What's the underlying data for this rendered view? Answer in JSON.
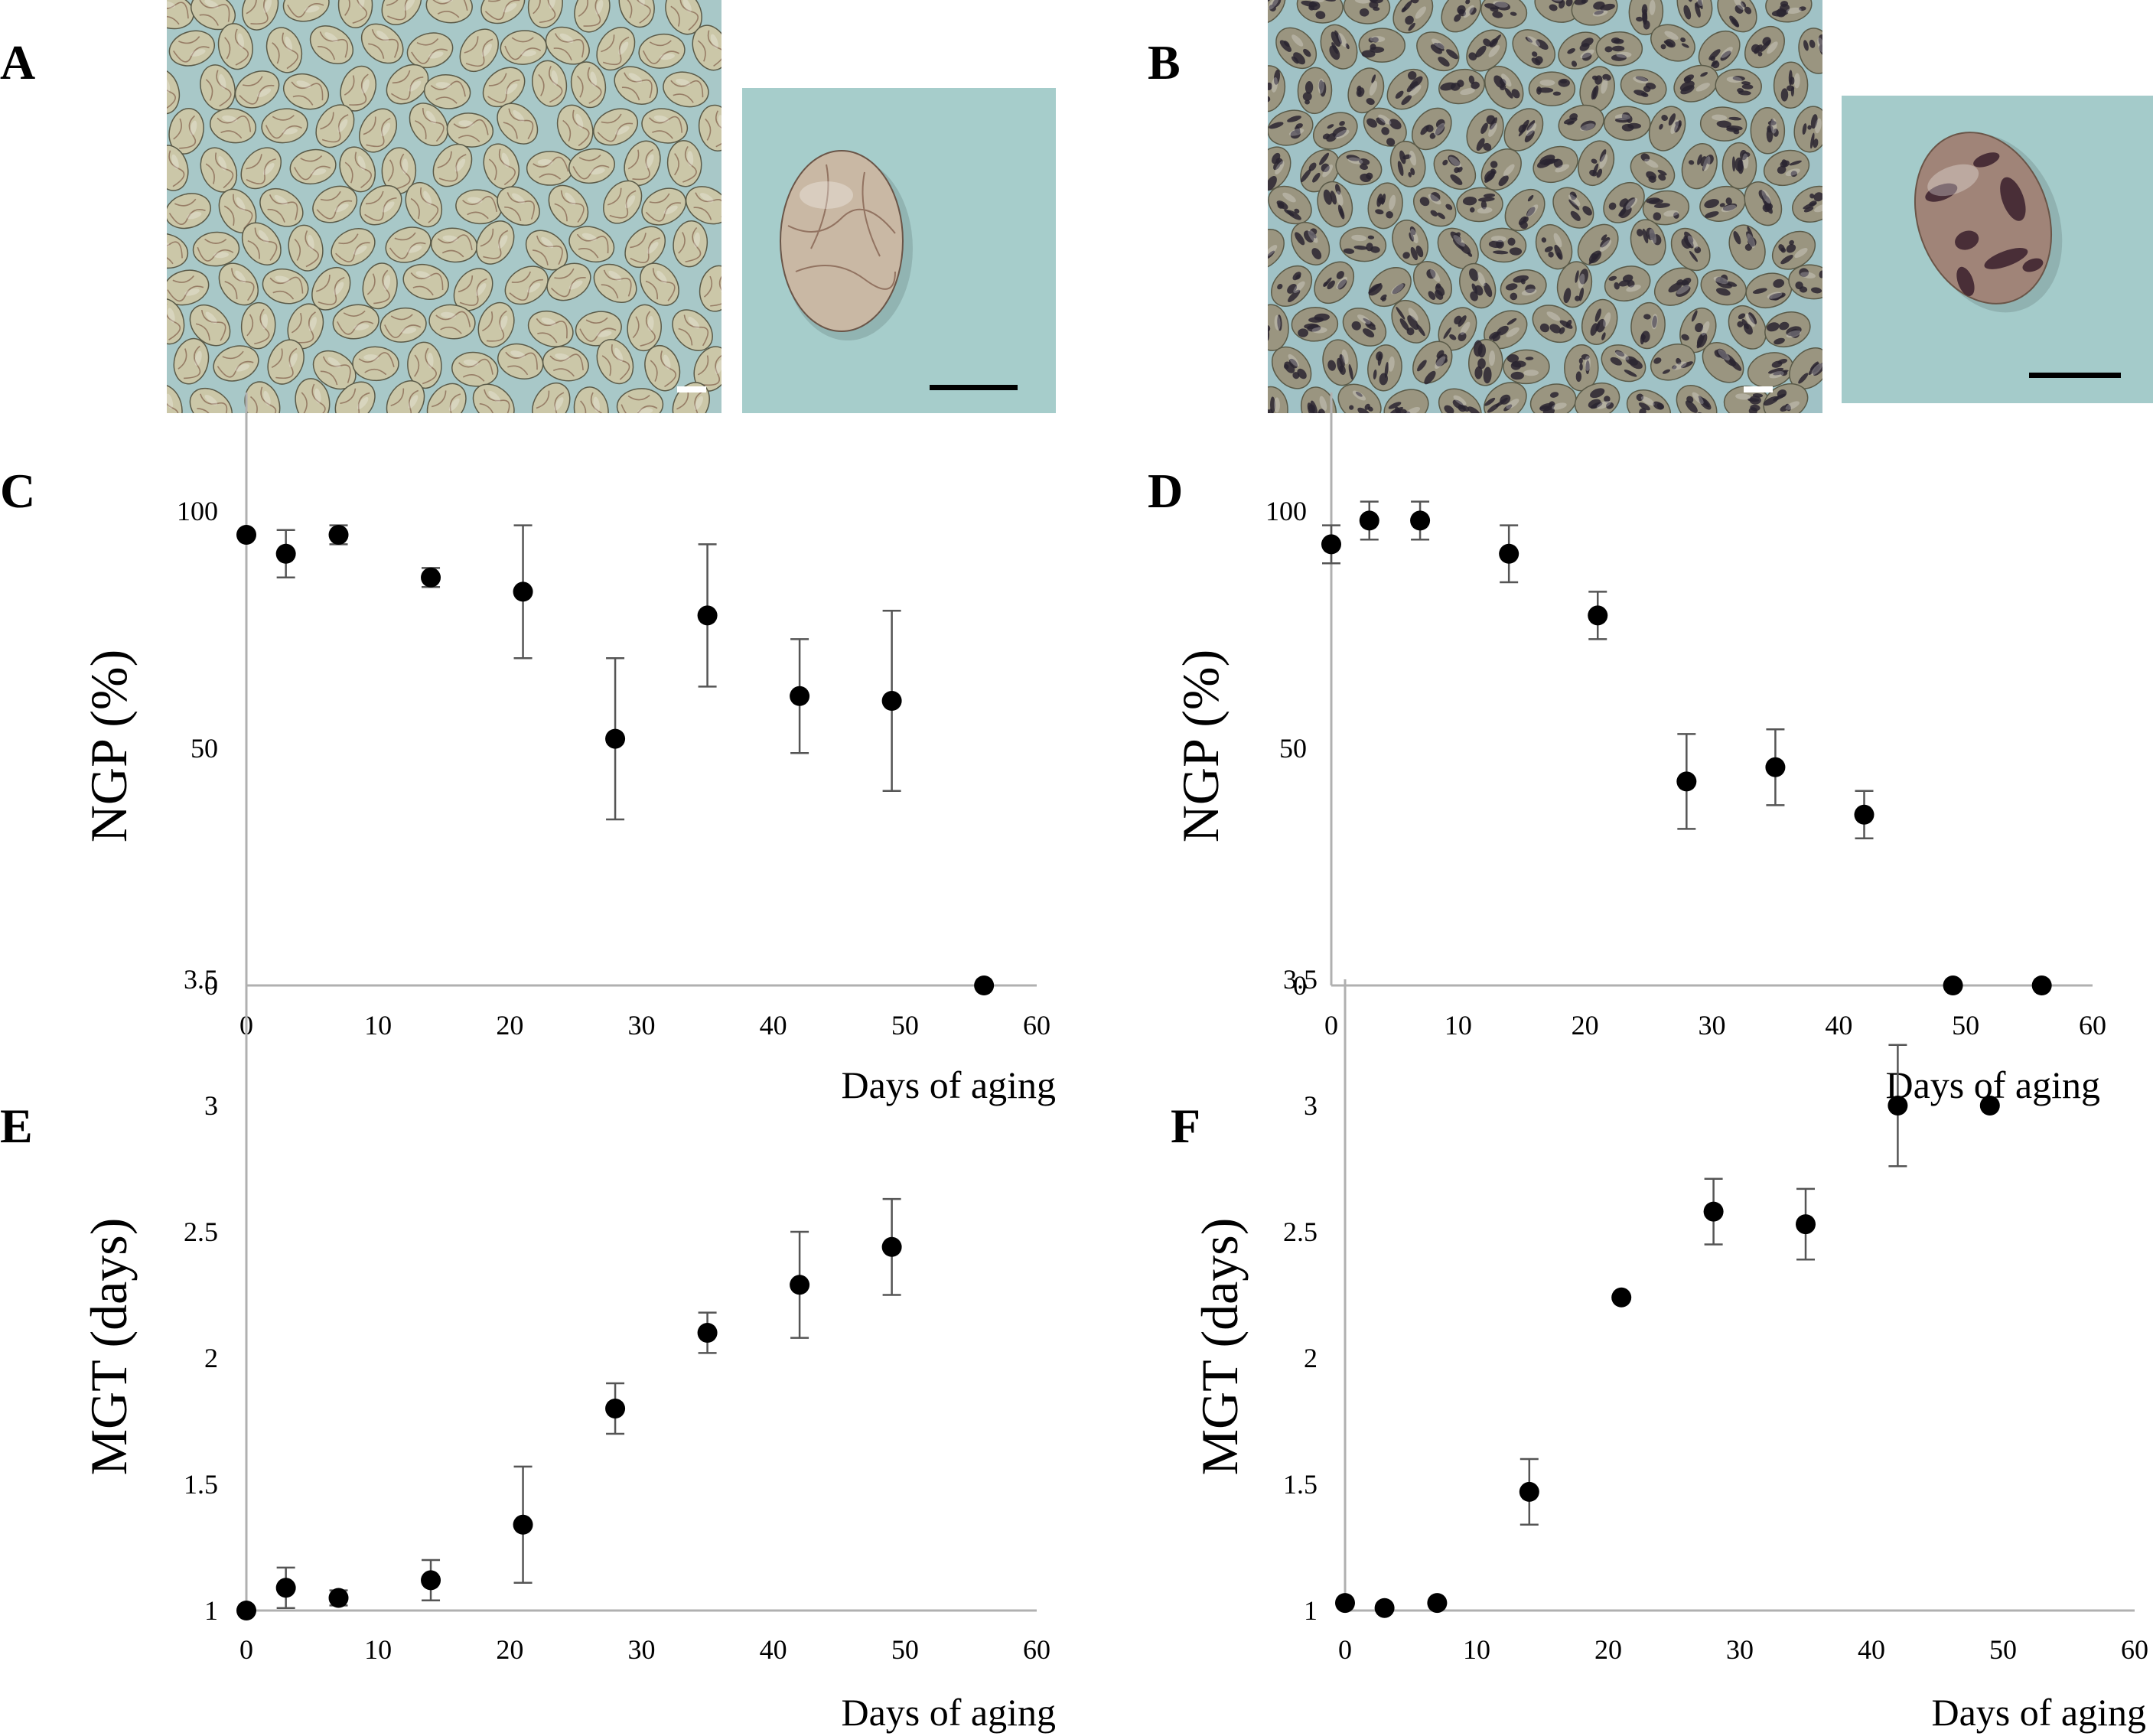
{
  "panel_labels": {
    "A": "A",
    "B": "B",
    "C": "C",
    "D": "D",
    "E": "E",
    "F": "F"
  },
  "photos": {
    "A": {
      "background": "#a8c8c8",
      "seed_color": "#cbc7a8",
      "crack_color": "#8a6a55",
      "scale_bar_color": "#ffffff",
      "closeup_bg": "#a6cdcb",
      "closeup_seed": "#c9b8a4",
      "closeup_bar_color": "#000000"
    },
    "B": {
      "background": "#a0c2c6",
      "seed_color": "#9a9580",
      "mottle_color": "#2a2430",
      "scale_bar_color": "#ffffff",
      "closeup_bg": "#a4cbca",
      "closeup_seed": "#a08478",
      "closeup_bar_color": "#000000"
    }
  },
  "chart_data": [
    {
      "panel": "C",
      "type": "scatter",
      "ylabel": "NGP (%)",
      "xlabel": "Days of aging",
      "xlim": [
        0,
        60
      ],
      "ylim": [
        0,
        125
      ],
      "xticks": [
        "0",
        "10",
        "20",
        "30",
        "40",
        "50",
        "60"
      ],
      "yticks": [
        "0",
        "50",
        "100"
      ],
      "ytick_values": [
        0,
        50,
        100
      ],
      "points": [
        {
          "x": 0,
          "y": 95,
          "err": 0
        },
        {
          "x": 3,
          "y": 91,
          "err": 5
        },
        {
          "x": 7,
          "y": 95,
          "err": 2
        },
        {
          "x": 14,
          "y": 86,
          "err": 2
        },
        {
          "x": 21,
          "y": 83,
          "err": 14
        },
        {
          "x": 28,
          "y": 52,
          "err": 17
        },
        {
          "x": 35,
          "y": 78,
          "err": 15
        },
        {
          "x": 42,
          "y": 61,
          "err": 12
        },
        {
          "x": 49,
          "y": 60,
          "err": 19
        },
        {
          "x": 56,
          "y": 0,
          "err": 0
        }
      ]
    },
    {
      "panel": "D",
      "type": "scatter",
      "ylabel": "NGP (%)",
      "xlabel": "Days of aging",
      "xlim": [
        0,
        60
      ],
      "ylim": [
        0,
        125
      ],
      "xticks": [
        "0",
        "10",
        "20",
        "30",
        "40",
        "50",
        "60"
      ],
      "yticks": [
        "0",
        "50",
        "100"
      ],
      "ytick_values": [
        0,
        50,
        100
      ],
      "points": [
        {
          "x": 0,
          "y": 93,
          "err": 4
        },
        {
          "x": 3,
          "y": 98,
          "err": 4
        },
        {
          "x": 7,
          "y": 98,
          "err": 4
        },
        {
          "x": 14,
          "y": 91,
          "err": 6
        },
        {
          "x": 21,
          "y": 78,
          "err": 5
        },
        {
          "x": 28,
          "y": 43,
          "err": 10
        },
        {
          "x": 35,
          "y": 46,
          "err": 8
        },
        {
          "x": 42,
          "y": 36,
          "err": 5
        },
        {
          "x": 49,
          "y": 0,
          "err": 0
        },
        {
          "x": 56,
          "y": 0,
          "err": 0
        }
      ]
    },
    {
      "panel": "E",
      "type": "scatter",
      "ylabel": "MGT (days)",
      "xlabel": "Days of aging",
      "xlim": [
        0,
        60
      ],
      "ylim": [
        1,
        3.5
      ],
      "xticks": [
        "0",
        "10",
        "20",
        "30",
        "40",
        "50",
        "60"
      ],
      "yticks": [
        "1",
        "1.5",
        "2",
        "2.5",
        "3",
        "3.5"
      ],
      "ytick_values": [
        1,
        1.5,
        2,
        2.5,
        3,
        3.5
      ],
      "points": [
        {
          "x": 0,
          "y": 1.0,
          "err": 0
        },
        {
          "x": 3,
          "y": 1.09,
          "err": 0.08
        },
        {
          "x": 7,
          "y": 1.05,
          "err": 0.03
        },
        {
          "x": 14,
          "y": 1.12,
          "err": 0.08
        },
        {
          "x": 21,
          "y": 1.34,
          "err": 0.23
        },
        {
          "x": 28,
          "y": 1.8,
          "err": 0.1
        },
        {
          "x": 35,
          "y": 2.1,
          "err": 0.08
        },
        {
          "x": 42,
          "y": 2.29,
          "err": 0.21
        },
        {
          "x": 49,
          "y": 2.44,
          "err": 0.19
        }
      ]
    },
    {
      "panel": "F",
      "type": "scatter",
      "ylabel": "MGT (days)",
      "xlabel": "Days of aging",
      "xlim": [
        0,
        60
      ],
      "ylim": [
        1,
        3.5
      ],
      "xticks": [
        "0",
        "10",
        "20",
        "30",
        "40",
        "50",
        "60"
      ],
      "yticks": [
        "1",
        "1.5",
        "2",
        "2.5",
        "3",
        "3.5"
      ],
      "ytick_values": [
        1,
        1.5,
        2,
        2.5,
        3,
        3.5
      ],
      "points": [
        {
          "x": 0,
          "y": 1.03,
          "err": 0
        },
        {
          "x": 3,
          "y": 1.01,
          "err": 0
        },
        {
          "x": 7,
          "y": 1.03,
          "err": 0
        },
        {
          "x": 14,
          "y": 1.47,
          "err": 0.13
        },
        {
          "x": 21,
          "y": 2.24,
          "err": 0
        },
        {
          "x": 28,
          "y": 2.58,
          "err": 0.13
        },
        {
          "x": 35,
          "y": 2.53,
          "err": 0.14
        },
        {
          "x": 42,
          "y": 3.0,
          "err": 0.24
        },
        {
          "x": 49,
          "y": 3.0,
          "err": 0
        }
      ]
    }
  ]
}
